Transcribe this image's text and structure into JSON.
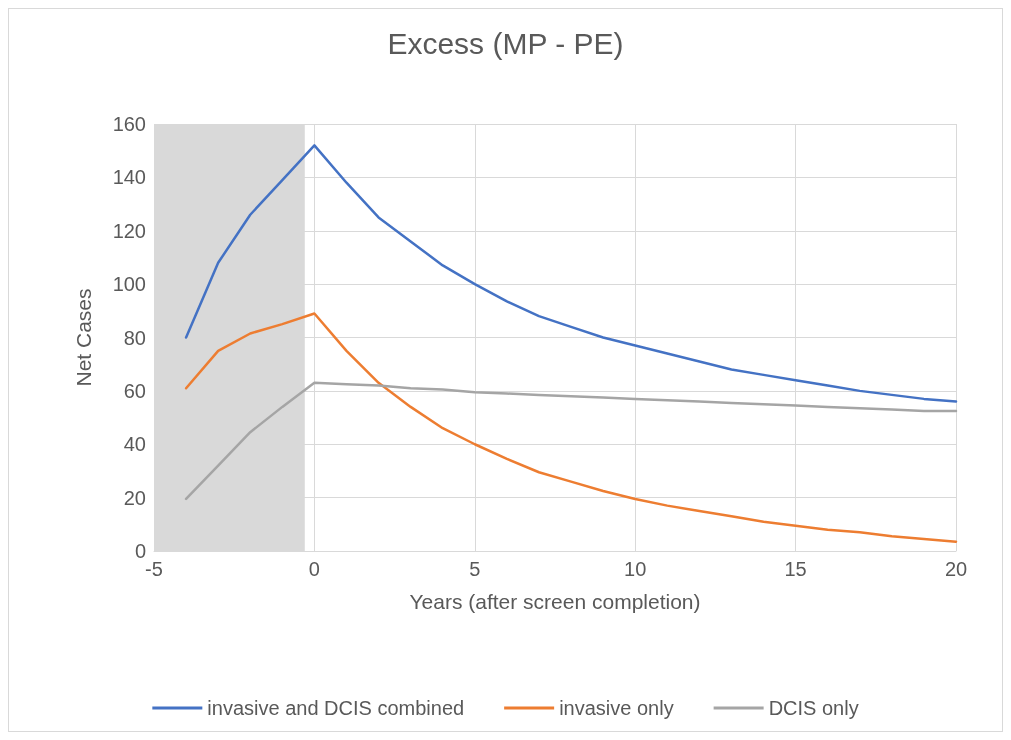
{
  "chart_data": {
    "type": "line",
    "title": "Excess (MP - PE)",
    "xlabel": "Years (after screen completion)",
    "ylabel": "Net Cases",
    "x": [
      -4,
      -3,
      -2,
      -1,
      0,
      1,
      2,
      3,
      4,
      5,
      6,
      7,
      8,
      9,
      10,
      11,
      12,
      13,
      14,
      15,
      16,
      17,
      18,
      19,
      20
    ],
    "series": [
      {
        "name": "invasive and DCIS combined",
        "color": "#4472c4",
        "values": [
          80,
          108,
          126,
          139,
          152,
          138,
          125,
          116,
          107,
          100,
          93.5,
          88,
          84,
          80,
          77,
          74,
          71,
          68,
          66,
          64,
          62,
          60,
          58.5,
          57,
          56
        ]
      },
      {
        "name": "invasive only",
        "color": "#ed7d31",
        "values": [
          61,
          75,
          81.5,
          85,
          89,
          75,
          63,
          54,
          46,
          40,
          34.5,
          29.5,
          26,
          22.5,
          19.5,
          17,
          15,
          13,
          11,
          9.5,
          8,
          7,
          5.5,
          4.5,
          3.5
        ]
      },
      {
        "name": "DCIS only",
        "color": "#a5a5a5",
        "values": [
          19.5,
          32,
          44.5,
          54,
          63,
          62.5,
          62,
          61,
          60.5,
          59.5,
          59,
          58.5,
          58,
          57.5,
          57,
          56.5,
          56,
          55.5,
          55,
          54.5,
          54,
          53.5,
          53,
          52.5,
          52.5
        ]
      }
    ],
    "xlim": [
      -5,
      20
    ],
    "xticks": [
      -5,
      0,
      5,
      10,
      15,
      20
    ],
    "ylim": [
      0,
      160
    ],
    "yticks": [
      0,
      20,
      40,
      60,
      80,
      100,
      120,
      140,
      160
    ],
    "bands": [
      {
        "axis": "x",
        "from": -5,
        "to": -0.3,
        "color": "#d9d9d9"
      }
    ],
    "grid": true,
    "legend": "bottom",
    "marker": "none",
    "line_style": "solid"
  }
}
